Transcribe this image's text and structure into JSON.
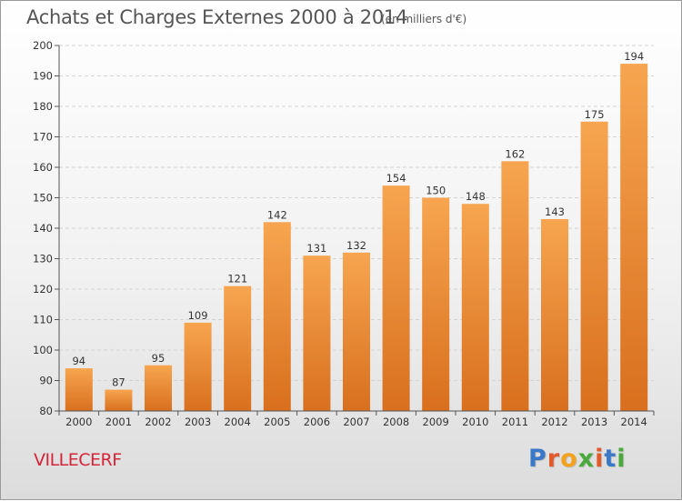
{
  "header": {
    "title": "Achats et Charges Externes 2000 à 2014",
    "subtitle": "(en milliers d'€)"
  },
  "footer": {
    "commune": "VILLECERF",
    "logo": {
      "letters": [
        {
          "char": "P",
          "color": "#3a78c8"
        },
        {
          "char": "r",
          "color": "#e35a2a"
        },
        {
          "char": "o",
          "color": "#f2a21c"
        },
        {
          "char": "x",
          "color": "#4aa83c"
        },
        {
          "char": "i",
          "color": "#e35a2a"
        },
        {
          "char": "t",
          "color": "#3a78c8"
        },
        {
          "char": "i",
          "color": "#4aa83c"
        }
      ]
    }
  },
  "chart_data": {
    "type": "bar",
    "title": "Achats et Charges Externes 2000 à 2014",
    "subtitle": "(en milliers d'€)",
    "categories": [
      "2000",
      "2001",
      "2002",
      "2003",
      "2004",
      "2005",
      "2006",
      "2007",
      "2008",
      "2009",
      "2010",
      "2011",
      "2012",
      "2013",
      "2014"
    ],
    "values": [
      94,
      87,
      95,
      109,
      121,
      142,
      131,
      132,
      154,
      150,
      148,
      162,
      143,
      175,
      194
    ],
    "ylim": [
      80,
      200
    ],
    "yticks": [
      80,
      90,
      100,
      110,
      120,
      130,
      140,
      150,
      160,
      170,
      180,
      190,
      200
    ],
    "grid": true,
    "data_labels": true,
    "colors": {
      "bar_top": "#f7a550",
      "bar_bottom": "#d86f1e",
      "grid": "#d4d4d4",
      "axis": "#555555",
      "text": "#333333"
    }
  }
}
